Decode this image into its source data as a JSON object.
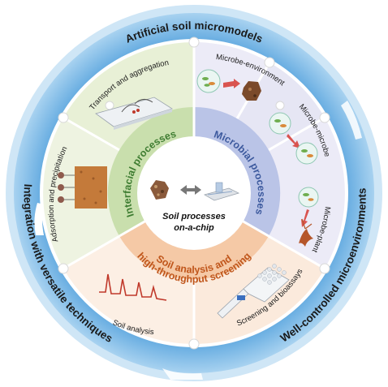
{
  "outer_ring": {
    "top": "Artificial soil micromodels",
    "left": "Integration with versatile techniques",
    "right": "Well-controlled microenvironments"
  },
  "segments": {
    "transport": "Transport and aggregation",
    "microbe_environment": "Microbe-environment",
    "microbe_microbe": "Microbe-microbe",
    "microbe_plant": "Microbe-plant",
    "screening": "Screening and bioassays",
    "soil_analysis": "Soil analysis",
    "adsorption": "Adsorption and precipitation"
  },
  "inner": {
    "interfacial": "Interfacial processes",
    "microbial": "Microbial processes",
    "analysis_line1": "Soil analysis and",
    "analysis_line2": "high-throughput screening"
  },
  "center": {
    "line1": "Soil processes",
    "line2": "on-a-chip"
  },
  "colors": {
    "ring_blue": "#8ec5ea",
    "green": "#e8f0d6",
    "green_inner": "#c5dca6",
    "purple": "#e9e9f5",
    "purple_inner": "#b9c3e6",
    "orange": "#fbeadc",
    "orange_inner": "#f4c6a3",
    "interfacial_text": "#3f7d32",
    "microbial_text": "#3d5a9e",
    "analysis_text": "#c0561b"
  }
}
